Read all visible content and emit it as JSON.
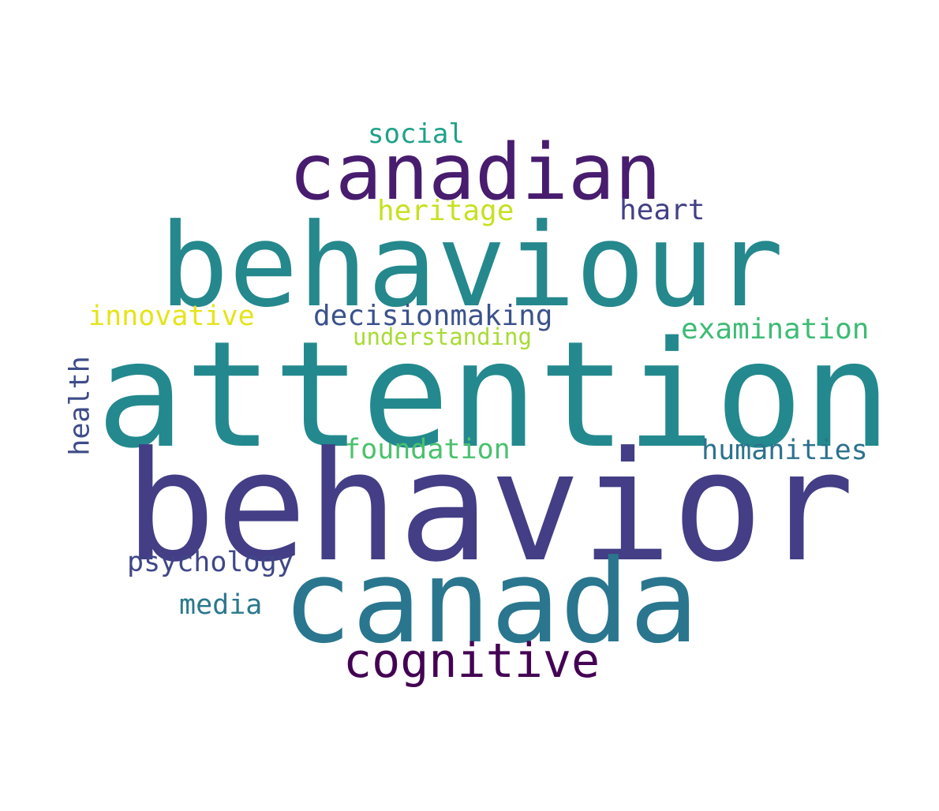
{
  "words": [
    {
      "id": "attention",
      "text": "attention",
      "color": "#23898e"
    },
    {
      "id": "behavior",
      "text": "behavior",
      "color": "#433e85"
    },
    {
      "id": "behaviour",
      "text": "behaviour",
      "color": "#25888d"
    },
    {
      "id": "canada",
      "text": "canada",
      "color": "#2a768e"
    },
    {
      "id": "canadian",
      "text": "canadian",
      "color": "#481c6e"
    },
    {
      "id": "cognitive",
      "text": "cognitive",
      "color": "#440154"
    },
    {
      "id": "decisionmaking",
      "text": "decisionmaking",
      "color": "#3b528b"
    },
    {
      "id": "examination",
      "text": "examination",
      "color": "#3dbc74"
    },
    {
      "id": "humanities",
      "text": "humanities",
      "color": "#2c728e"
    },
    {
      "id": "foundation",
      "text": "foundation",
      "color": "#4ac16d"
    },
    {
      "id": "psychology",
      "text": "psychology",
      "color": "#3f4788"
    },
    {
      "id": "media",
      "text": "media",
      "color": "#2a788e"
    },
    {
      "id": "innovative",
      "text": "innovative",
      "color": "#e5e419"
    },
    {
      "id": "heritage",
      "text": "heritage",
      "color": "#c8e020"
    },
    {
      "id": "heart",
      "text": "heart",
      "color": "#424086"
    },
    {
      "id": "social",
      "text": "social",
      "color": "#1fa188"
    },
    {
      "id": "understanding",
      "text": "understanding",
      "color": "#a8db34"
    },
    {
      "id": "health",
      "text": "health",
      "color": "#3e4c8a"
    }
  ]
}
